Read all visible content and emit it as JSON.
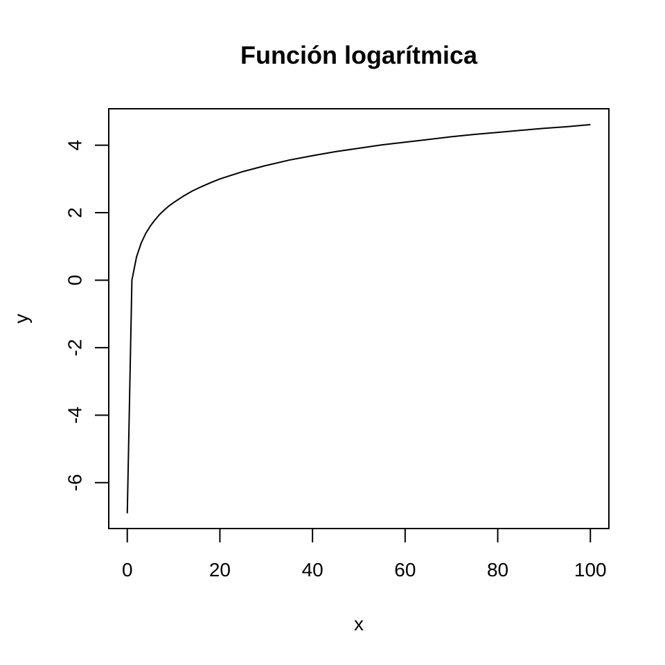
{
  "chart_data": {
    "type": "line",
    "title": "Función logarítmica",
    "xlabel": "x",
    "ylabel": "y",
    "xlim": [
      -4,
      104
    ],
    "ylim": [
      -7.36,
      5.08
    ],
    "x_ticks": [
      0,
      20,
      40,
      60,
      80,
      100
    ],
    "x_tick_labels": [
      "0",
      "20",
      "40",
      "60",
      "80",
      "100"
    ],
    "y_ticks": [
      -6,
      -4,
      -2,
      0,
      2,
      4
    ],
    "y_tick_labels": [
      "-6",
      "-4",
      "-2",
      "0",
      "2",
      "4"
    ],
    "grid": false,
    "legend": "none",
    "series": [
      {
        "x": [
          0.001,
          1,
          2,
          3,
          4,
          5,
          6,
          7,
          8,
          9,
          10,
          12,
          14,
          16,
          18,
          20,
          25,
          30,
          35,
          40,
          45,
          50,
          55,
          60,
          65,
          70,
          75,
          80,
          85,
          90,
          95,
          100
        ],
        "y": [
          -6.91,
          0,
          0.69,
          1.1,
          1.39,
          1.61,
          1.79,
          1.95,
          2.08,
          2.2,
          2.3,
          2.48,
          2.64,
          2.77,
          2.89,
          3.0,
          3.22,
          3.4,
          3.56,
          3.69,
          3.81,
          3.91,
          4.01,
          4.09,
          4.17,
          4.25,
          4.32,
          4.38,
          4.44,
          4.5,
          4.55,
          4.61
        ]
      }
    ]
  }
}
